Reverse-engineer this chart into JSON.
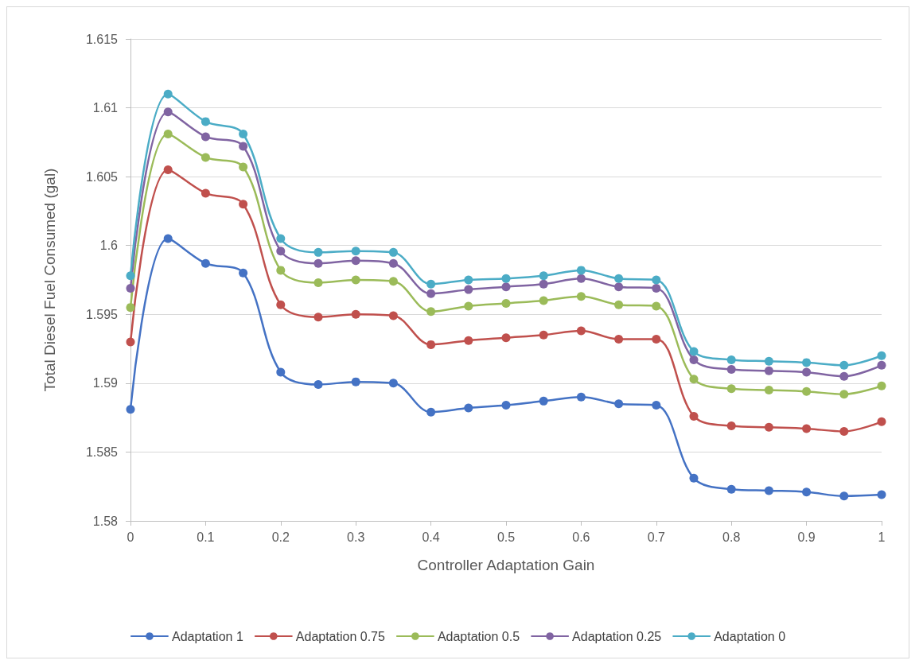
{
  "chart_data": {
    "type": "line",
    "xlabel": "Controller Adaptation Gain",
    "ylabel": "Total Diesel Fuel Consumed (gal)",
    "x": [
      0,
      0.05,
      0.1,
      0.15,
      0.2,
      0.25,
      0.3,
      0.35,
      0.4,
      0.45,
      0.5,
      0.55,
      0.6,
      0.65,
      0.7,
      0.75,
      0.8,
      0.85,
      0.9,
      0.95,
      1
    ],
    "series": [
      {
        "name": "Adaptation 1",
        "color": "#4472c4",
        "values": [
          1.5881,
          1.6005,
          1.5987,
          1.598,
          1.5908,
          1.5899,
          1.5901,
          1.59,
          1.5879,
          1.5882,
          1.5884,
          1.5887,
          1.589,
          1.5885,
          1.5884,
          1.5831,
          1.5823,
          1.5822,
          1.5821,
          1.5818,
          1.5819
        ]
      },
      {
        "name": "Adaptation 0.75",
        "color": "#c0504d",
        "values": [
          1.593,
          1.6055,
          1.6038,
          1.603,
          1.5957,
          1.5948,
          1.595,
          1.5949,
          1.5928,
          1.5931,
          1.5933,
          1.5935,
          1.5938,
          1.5932,
          1.5932,
          1.5876,
          1.5869,
          1.5868,
          1.5867,
          1.5865,
          1.5872
        ]
      },
      {
        "name": "Adaptation 0.5",
        "color": "#9bbb59",
        "values": [
          1.5955,
          1.6081,
          1.6064,
          1.6057,
          1.5982,
          1.5973,
          1.5975,
          1.5974,
          1.5952,
          1.5956,
          1.5958,
          1.596,
          1.5963,
          1.5957,
          1.5956,
          1.5903,
          1.5896,
          1.5895,
          1.5894,
          1.5892,
          1.5898
        ]
      },
      {
        "name": "Adaptation 0.25",
        "color": "#8064a2",
        "values": [
          1.5969,
          1.6097,
          1.6079,
          1.6072,
          1.5996,
          1.5987,
          1.5989,
          1.5987,
          1.5965,
          1.5968,
          1.597,
          1.5972,
          1.5976,
          1.597,
          1.5969,
          1.5917,
          1.591,
          1.5909,
          1.5908,
          1.5905,
          1.5913
        ]
      },
      {
        "name": "Adaptation 0",
        "color": "#4bacc6",
        "values": [
          1.5978,
          1.611,
          1.609,
          1.6081,
          1.6005,
          1.5995,
          1.5996,
          1.5995,
          1.5972,
          1.5975,
          1.5976,
          1.5978,
          1.5982,
          1.5976,
          1.5975,
          1.5923,
          1.5917,
          1.5916,
          1.5915,
          1.5913,
          1.592
        ]
      }
    ],
    "xlim": [
      0,
      1
    ],
    "xticks": [
      0,
      0.1,
      0.2,
      0.3,
      0.4,
      0.5,
      0.6,
      0.7,
      0.8,
      0.9,
      1
    ],
    "ylim": [
      1.58,
      1.615
    ],
    "yticks": [
      1.58,
      1.585,
      1.59,
      1.595,
      1.6,
      1.605,
      1.61,
      1.615
    ],
    "grid": "y",
    "legend": "bottom",
    "marker": "circle",
    "line_style": "solid"
  }
}
